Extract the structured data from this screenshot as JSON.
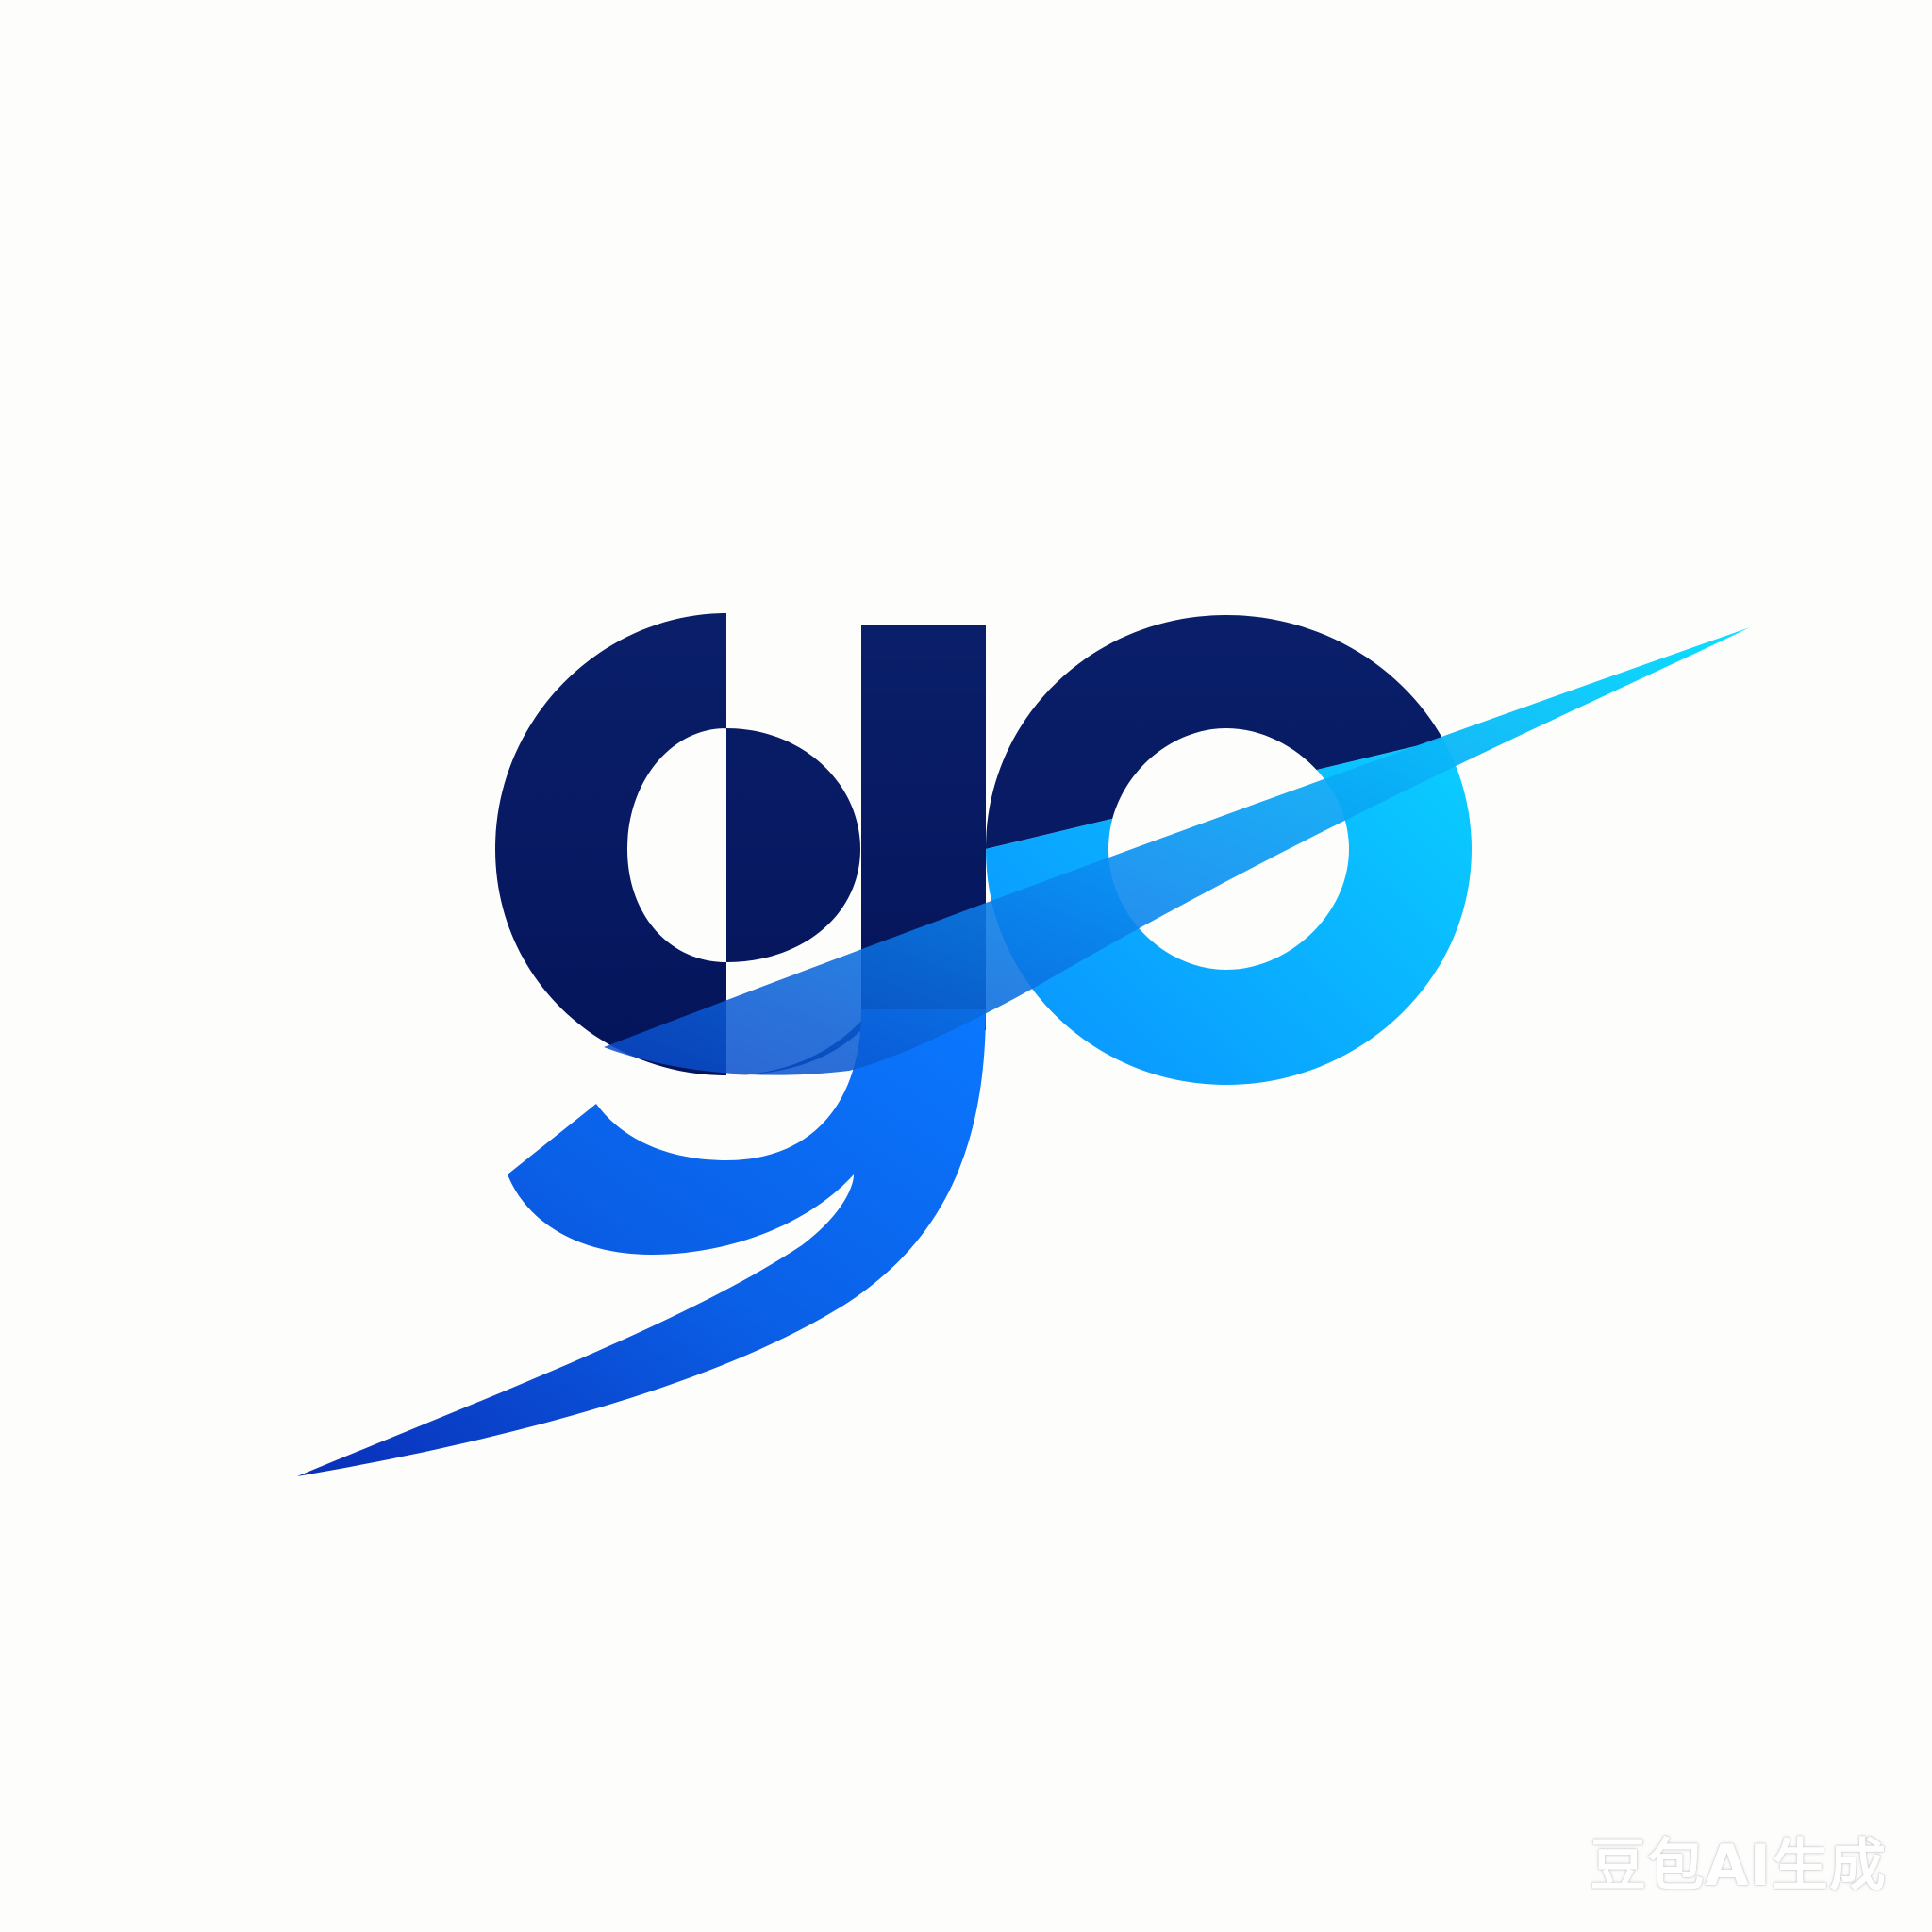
{
  "logo": {
    "text": "go",
    "icon": "go-swoosh-logo",
    "colors": {
      "navy": "#06195c",
      "blue": "#0a5fe6",
      "royal": "#0a3fc2",
      "cyan": "#0ad0ff",
      "sky": "#0aa8ff"
    }
  },
  "watermark": {
    "text": "豆包AI生成"
  }
}
